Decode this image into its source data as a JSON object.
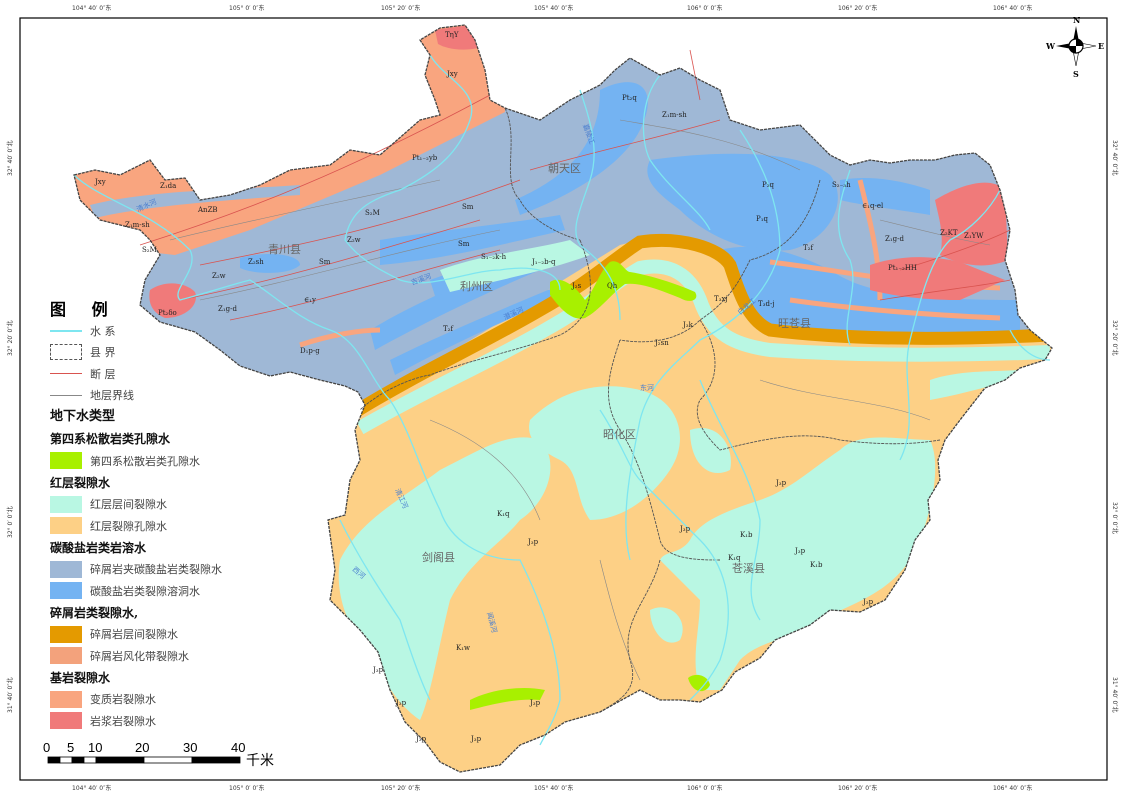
{
  "frame": {
    "top_longitudes": [
      "104° 40′ 0″东",
      "105° 0′ 0″东",
      "105° 20′ 0″东",
      "105° 40′ 0″东",
      "106° 0′ 0″东",
      "106° 20′ 0″东",
      "106° 40′ 0″东"
    ],
    "side_latitudes": [
      "32° 40′ 0″北",
      "32° 20′ 0″北",
      "32° 0′ 0″北",
      "31° 40′ 0″北"
    ]
  },
  "compass": {
    "n": "N",
    "s": "S",
    "e": "E",
    "w": "W"
  },
  "counties": [
    "青川县",
    "朝天区",
    "利州区",
    "旺苍县",
    "昭化区",
    "剑阁县",
    "苍溪县"
  ],
  "rivers": [
    "清水河",
    "吉溪河",
    "潜溪河",
    "嘉陵江",
    "东河",
    "白龙江",
    "西河",
    "闻溪河",
    "清江河"
  ],
  "geo_labels": [
    "TηY",
    "Jxy",
    "Pt₁₋₂yb",
    "Jxy",
    "Z₁da",
    "AnZB",
    "Z₁m-sh",
    "S₂M",
    "S₂M",
    "Z₂w",
    "Sm",
    "Sm",
    "Z₂sh",
    "Sm",
    "Z₂w",
    "Z₁g-d",
    "Pt₂δo",
    "∈₁y",
    "D₁p-g",
    "S₁₋₂k-h",
    "T₂f",
    "J₁₋₂b-q",
    "J₂s",
    "Qh",
    "Pt₂q",
    "Z₁m-sh",
    "P₂q",
    "P₁q",
    "S₂₋₃h",
    "∈₁q-el",
    "Z₁g-d",
    "Z₂KT",
    "Z₁YW",
    "Pt₁₋₂HH",
    "T₂f",
    "T₃xj",
    "T₃d-j",
    "J₂sn",
    "J₃k",
    "K₁q",
    "J₃p",
    "J₃p",
    "K₁b",
    "K₁q",
    "J₃p",
    "K₁b",
    "J₃p",
    "K₁w",
    "J₃p",
    "J₃p",
    "J₃p",
    "J₃p",
    "J₃p",
    "J₃p"
  ],
  "legend": {
    "title": "图 例",
    "lines": [
      {
        "label": "水  系",
        "color": "#7ee6f0"
      },
      {
        "label": "县  界",
        "color": "#555555"
      },
      {
        "label": "断  层",
        "color": "#d9534f"
      },
      {
        "label": "地层界线",
        "color": "#888888"
      }
    ],
    "groundwater_title": "地下水类型",
    "groups": [
      {
        "name": "第四系松散岩类孔隙水",
        "items": [
          {
            "label": "第四系松散岩类孔隙水",
            "color": "#a8f000"
          }
        ]
      },
      {
        "name": "红层裂隙水",
        "items": [
          {
            "label": "红层层间裂隙水",
            "color": "#b9f7e3"
          },
          {
            "label": "红层裂隙孔隙水",
            "color": "#fdd086"
          }
        ]
      },
      {
        "name": "碳酸盐岩类岩溶水",
        "items": [
          {
            "label": "碎屑岩夹碳酸盐岩类裂隙水",
            "color": "#9fb8d6"
          },
          {
            "label": "碳酸盐岩类裂隙溶洞水",
            "color": "#74b3f2"
          }
        ]
      },
      {
        "name": "碎屑岩类裂隙水,",
        "items": [
          {
            "label": "碎屑岩层间裂隙水",
            "color": "#e49a00"
          },
          {
            "label": "碎屑岩风化带裂隙水",
            "color": "#f3a27c"
          }
        ]
      },
      {
        "name": "基岩裂隙水",
        "items": [
          {
            "label": "变质岩裂隙水",
            "color": "#f9a57f"
          },
          {
            "label": "岩浆岩裂隙水",
            "color": "#f07a7a"
          }
        ]
      }
    ]
  },
  "scale_bar": {
    "ticks": [
      "0",
      "5",
      "10",
      "20",
      "30",
      "40"
    ],
    "unit": "千米"
  }
}
